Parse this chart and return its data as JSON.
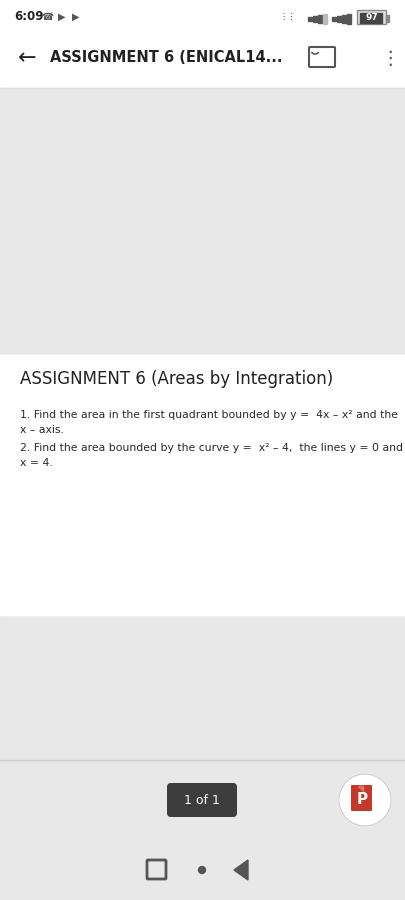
{
  "bg_gray": "#e8e8e8",
  "bg_white": "#ffffff",
  "bg_appbar": "#ffffff",
  "status_time": "6:09",
  "status_battery": "97",
  "appbar_title": "ASSIGNMENT 6 (ENICAL14...",
  "doc_title": "ASSIGNMENT 6 (Areas by Integration)",
  "p1_line1": "1. Find the area in the first quadrant bounded by y =  4x – x² and the",
  "p1_line2": "x – axis.",
  "p2_line1": "2. Find the area bounded by the curve y =  x² – 4,  the lines y = 0 and",
  "p2_line2": "x = 4.",
  "page_label": "1 of 1",
  "indicator_bg": "#3d3d3d",
  "indicator_fg": "#ffffff",
  "text_dark": "#222222",
  "text_body": "#2a2a2a",
  "icon_color": "#555555",
  "nav_icon_color": "#555555",
  "title_fs": 12,
  "body_fs": 7.8,
  "appbar_separator": "#dedede"
}
